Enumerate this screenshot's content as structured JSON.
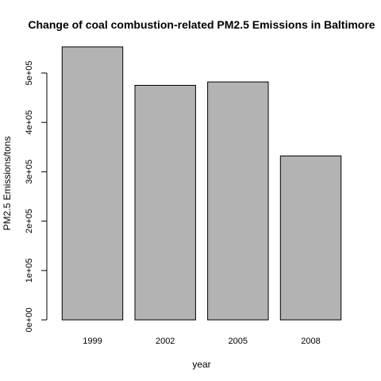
{
  "chart_data": {
    "type": "bar",
    "title": "Change of coal combustion-related PM2.5 Emissions in Baltimore",
    "xlabel": "year",
    "ylabel": "PM2.5 Emissions/tons",
    "categories": [
      "1999",
      "2002",
      "2005",
      "2008"
    ],
    "values": [
      553000,
      475000,
      482000,
      332000
    ],
    "ylim": [
      0,
      553000
    ],
    "yticks": [
      0,
      100000,
      200000,
      300000,
      400000,
      500000
    ],
    "ytick_labels": [
      "0e+00",
      "1e+05",
      "2e+05",
      "3e+05",
      "4e+05",
      "5e+05"
    ],
    "grid": false,
    "legend": "none",
    "bar_color": "#b3b3b3",
    "border_color": "#000000"
  }
}
